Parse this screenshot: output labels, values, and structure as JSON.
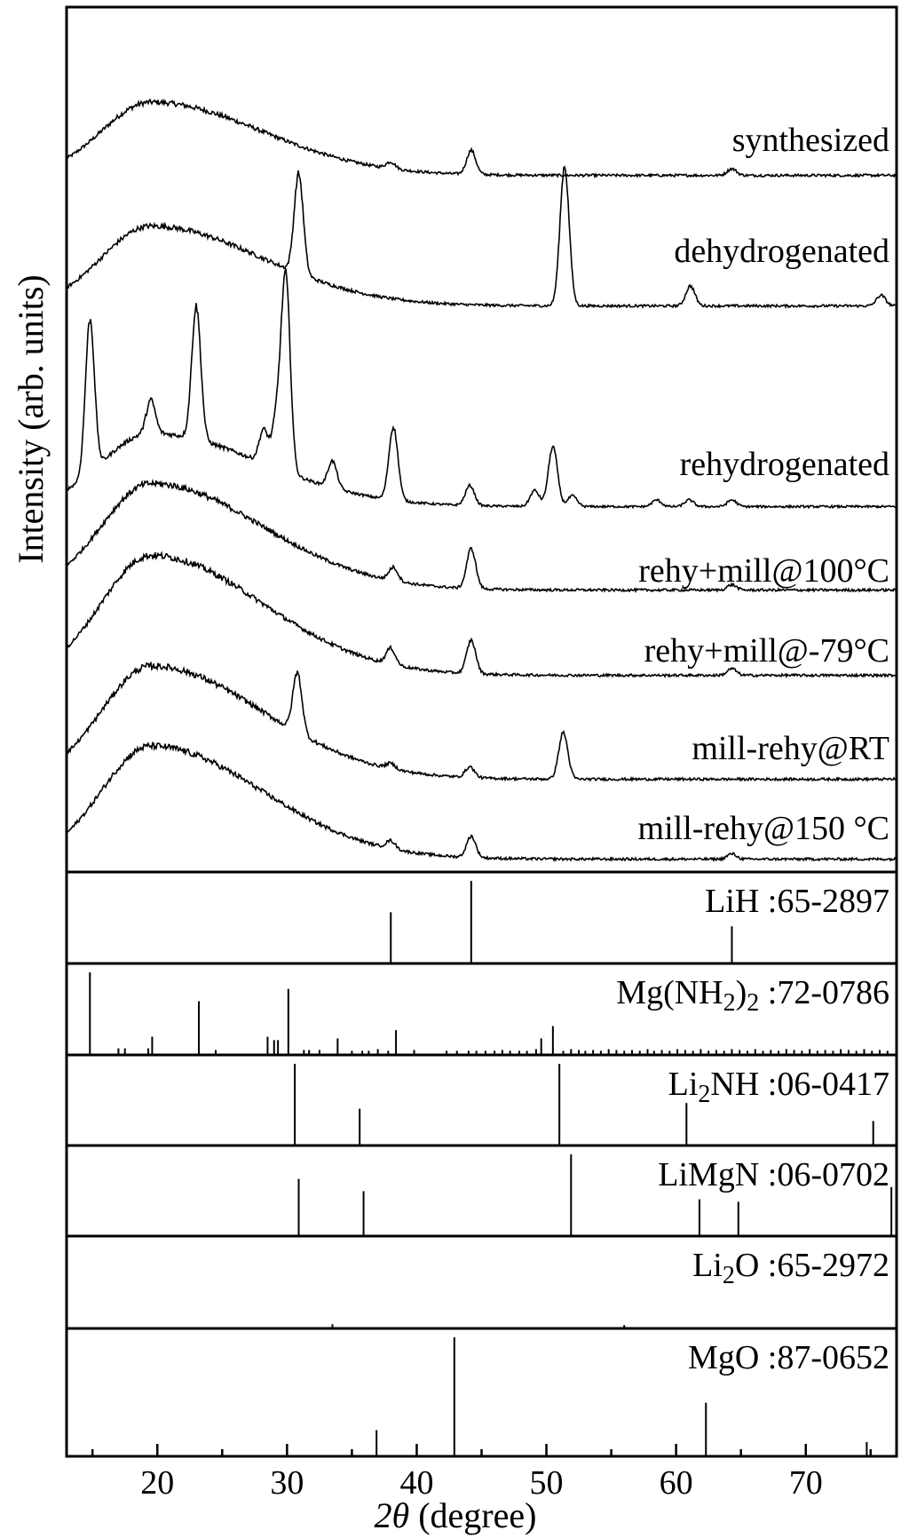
{
  "chart_data": {
    "type": "line",
    "xlabel": "(degree)",
    "xlabel_symbol": "2θ",
    "ylabel": "Intensity (arb. units)",
    "xlim": [
      13,
      77
    ],
    "xticks": [
      20,
      30,
      40,
      50,
      60,
      70
    ],
    "grid": false,
    "series": [
      {
        "name": "synthesized",
        "hump": {
          "center": 19.5,
          "height": 0.55
        },
        "peaks": [
          [
            38.0,
            0.05
          ],
          [
            44.2,
            0.18
          ],
          [
            64.3,
            0.05
          ]
        ],
        "noise": 0.035
      },
      {
        "name": "dehydrogenated",
        "hump": {
          "center": 19.5,
          "height": 0.6
        },
        "peaks": [
          [
            30.9,
            0.75
          ],
          [
            51.4,
            1.05
          ],
          [
            61.1,
            0.15
          ],
          [
            75.8,
            0.08
          ]
        ],
        "noise": 0.035
      },
      {
        "name": "rehydrogenated",
        "hump": {
          "center": 19.5,
          "height": 0.55
        },
        "peaks": [
          [
            14.8,
            1.15
          ],
          [
            19.5,
            0.25
          ],
          [
            23.0,
            1.0
          ],
          [
            28.2,
            0.25
          ],
          [
            29.2,
            0.35
          ],
          [
            29.9,
            1.45
          ],
          [
            33.5,
            0.2
          ],
          [
            38.2,
            0.55
          ],
          [
            44.1,
            0.15
          ],
          [
            49.1,
            0.12
          ],
          [
            50.5,
            0.45
          ],
          [
            52.0,
            0.08
          ],
          [
            58.5,
            0.05
          ],
          [
            61.0,
            0.05
          ],
          [
            64.3,
            0.05
          ]
        ],
        "noise": 0.03
      },
      {
        "name": "rehy+mill@100°C",
        "hump": {
          "center": 19.5,
          "height": 0.8
        },
        "peaks": [
          [
            38.2,
            0.1
          ],
          [
            44.2,
            0.3
          ],
          [
            64.3,
            0.04
          ]
        ],
        "noise": 0.035
      },
      {
        "name": "rehy+mill@-79°C",
        "hump": {
          "center": 19.5,
          "height": 0.9
        },
        "peaks": [
          [
            38.0,
            0.12
          ],
          [
            44.2,
            0.25
          ],
          [
            64.3,
            0.05
          ]
        ],
        "noise": 0.035
      },
      {
        "name": "mill-rehy@RT",
        "hump": {
          "center": 19.5,
          "height": 0.85
        },
        "peaks": [
          [
            30.8,
            0.45
          ],
          [
            38.0,
            0.04
          ],
          [
            44.1,
            0.08
          ],
          [
            51.3,
            0.35
          ]
        ],
        "noise": 0.035
      },
      {
        "name": "mill-rehy@150 °C",
        "hump": {
          "center": 19.5,
          "height": 0.85
        },
        "peaks": [
          [
            38.0,
            0.06
          ],
          [
            44.2,
            0.16
          ],
          [
            64.3,
            0.04
          ]
        ],
        "noise": 0.035
      }
    ],
    "references": [
      {
        "name_parts": [
          [
            "LiH :65-2897",
            false
          ]
        ],
        "lines": [
          [
            38.0,
            0.62
          ],
          [
            44.2,
            1.0
          ],
          [
            64.3,
            0.45
          ]
        ]
      },
      {
        "name_parts": [
          [
            "Mg(NH",
            false
          ],
          [
            "2",
            true
          ],
          [
            ")",
            false
          ],
          [
            "2",
            true
          ],
          [
            " :72-0786",
            false
          ]
        ],
        "lines": [
          [
            14.8,
            1.0
          ],
          [
            17.0,
            0.08
          ],
          [
            17.5,
            0.08
          ],
          [
            19.3,
            0.08
          ],
          [
            19.6,
            0.22
          ],
          [
            23.2,
            0.65
          ],
          [
            24.5,
            0.06
          ],
          [
            28.5,
            0.22
          ],
          [
            29.0,
            0.18
          ],
          [
            29.3,
            0.18
          ],
          [
            30.1,
            0.8
          ],
          [
            31.3,
            0.06
          ],
          [
            31.7,
            0.06
          ],
          [
            32.5,
            0.06
          ],
          [
            33.9,
            0.2
          ],
          [
            35.0,
            0.05
          ],
          [
            35.8,
            0.05
          ],
          [
            36.3,
            0.05
          ],
          [
            37.0,
            0.07
          ],
          [
            37.8,
            0.05
          ],
          [
            38.4,
            0.3
          ],
          [
            39.8,
            0.06
          ],
          [
            42.3,
            0.05
          ],
          [
            43.1,
            0.05
          ],
          [
            44.0,
            0.05
          ],
          [
            44.6,
            0.05
          ],
          [
            45.3,
            0.05
          ],
          [
            46.0,
            0.05
          ],
          [
            46.6,
            0.06
          ],
          [
            47.2,
            0.05
          ],
          [
            47.9,
            0.05
          ],
          [
            48.5,
            0.05
          ],
          [
            49.2,
            0.07
          ],
          [
            49.6,
            0.2
          ],
          [
            50.5,
            0.35
          ],
          [
            51.3,
            0.05
          ],
          [
            51.9,
            0.07
          ],
          [
            52.5,
            0.06
          ],
          [
            53.0,
            0.05
          ],
          [
            53.6,
            0.06
          ],
          [
            54.2,
            0.05
          ],
          [
            54.8,
            0.07
          ],
          [
            55.4,
            0.06
          ],
          [
            56.0,
            0.05
          ],
          [
            56.6,
            0.06
          ],
          [
            57.2,
            0.05
          ],
          [
            57.8,
            0.07
          ],
          [
            58.3,
            0.05
          ],
          [
            58.9,
            0.06
          ],
          [
            59.5,
            0.05
          ],
          [
            60.1,
            0.07
          ],
          [
            60.7,
            0.06
          ],
          [
            61.3,
            0.05
          ],
          [
            61.9,
            0.07
          ],
          [
            62.5,
            0.05
          ],
          [
            63.1,
            0.06
          ],
          [
            63.7,
            0.05
          ],
          [
            64.3,
            0.07
          ],
          [
            64.9,
            0.06
          ],
          [
            65.5,
            0.05
          ],
          [
            66.1,
            0.07
          ],
          [
            66.7,
            0.05
          ],
          [
            67.3,
            0.06
          ],
          [
            67.9,
            0.05
          ],
          [
            68.5,
            0.07
          ],
          [
            69.1,
            0.06
          ],
          [
            69.7,
            0.05
          ],
          [
            70.3,
            0.07
          ],
          [
            70.9,
            0.05
          ],
          [
            71.5,
            0.06
          ],
          [
            72.1,
            0.05
          ],
          [
            72.7,
            0.07
          ],
          [
            73.3,
            0.06
          ],
          [
            73.9,
            0.05
          ],
          [
            74.5,
            0.07
          ],
          [
            75.1,
            0.05
          ],
          [
            75.7,
            0.06
          ],
          [
            76.3,
            0.05
          ]
        ]
      },
      {
        "name_parts": [
          [
            "Li",
            false
          ],
          [
            "2",
            true
          ],
          [
            "NH :06-0417",
            false
          ]
        ],
        "lines": [
          [
            30.6,
            1.0
          ],
          [
            35.6,
            0.45
          ],
          [
            51.0,
            1.0
          ],
          [
            60.8,
            0.52
          ],
          [
            75.2,
            0.3
          ]
        ]
      },
      {
        "name_parts": [
          [
            "LiMgN :06-0702",
            false
          ]
        ],
        "lines": [
          [
            30.9,
            0.7
          ],
          [
            35.9,
            0.55
          ],
          [
            51.9,
            1.0
          ],
          [
            61.8,
            0.45
          ],
          [
            64.8,
            0.42
          ],
          [
            76.6,
            0.6
          ]
        ]
      },
      {
        "name_parts": [
          [
            "Li",
            false
          ],
          [
            "2",
            true
          ],
          [
            "O :65-2972",
            false
          ]
        ],
        "lines": [
          [
            33.5,
            0.05
          ],
          [
            56.0,
            0.04
          ]
        ]
      },
      {
        "name_parts": [
          [
            "MgO :87-0652",
            false
          ]
        ],
        "lines": [
          [
            36.9,
            0.22
          ],
          [
            42.9,
            1.0
          ],
          [
            62.3,
            0.45
          ],
          [
            74.7,
            0.12
          ]
        ]
      }
    ]
  }
}
